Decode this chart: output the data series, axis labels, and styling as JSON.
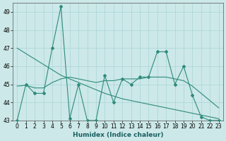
{
  "xlabel": "Humidex (Indice chaleur)",
  "x": [
    0,
    1,
    2,
    3,
    4,
    5,
    6,
    7,
    8,
    9,
    10,
    11,
    12,
    13,
    14,
    15,
    16,
    17,
    18,
    19,
    20,
    21,
    22,
    23
  ],
  "y_main": [
    43,
    45,
    44.5,
    44.5,
    47,
    49.3,
    43.1,
    45,
    43,
    43,
    45.5,
    44,
    45.3,
    45,
    45.4,
    45.4,
    46.8,
    46.8,
    45,
    46,
    44.4,
    43.2,
    43,
    43
  ],
  "y_smooth": [
    44.9,
    44.95,
    44.8,
    44.8,
    45.1,
    45.3,
    45.4,
    45.3,
    45.2,
    45.1,
    45.2,
    45.2,
    45.3,
    45.3,
    45.3,
    45.4,
    45.4,
    45.4,
    45.3,
    45.2,
    44.9,
    44.5,
    44.1,
    43.7
  ],
  "y_trend": [
    47.0,
    46.7,
    46.4,
    46.1,
    45.8,
    45.5,
    45.3,
    45.1,
    44.9,
    44.7,
    44.5,
    44.35,
    44.2,
    44.1,
    44.0,
    43.9,
    43.8,
    43.7,
    43.6,
    43.5,
    43.4,
    43.3,
    43.2,
    43.1
  ],
  "line_color": "#2e8b7a",
  "bg_color": "#cce8e8",
  "grid_color": "#aad4d4",
  "ylim": [
    43,
    49.5
  ],
  "xlim": [
    -0.5,
    23.5
  ],
  "yticks": [
    43,
    44,
    45,
    46,
    47,
    48,
    49
  ],
  "xticks": [
    0,
    1,
    2,
    3,
    4,
    5,
    6,
    7,
    8,
    9,
    10,
    11,
    12,
    13,
    14,
    15,
    16,
    17,
    18,
    19,
    20,
    21,
    22,
    23
  ],
  "tick_fontsize": 5.5,
  "xlabel_fontsize": 6.5
}
